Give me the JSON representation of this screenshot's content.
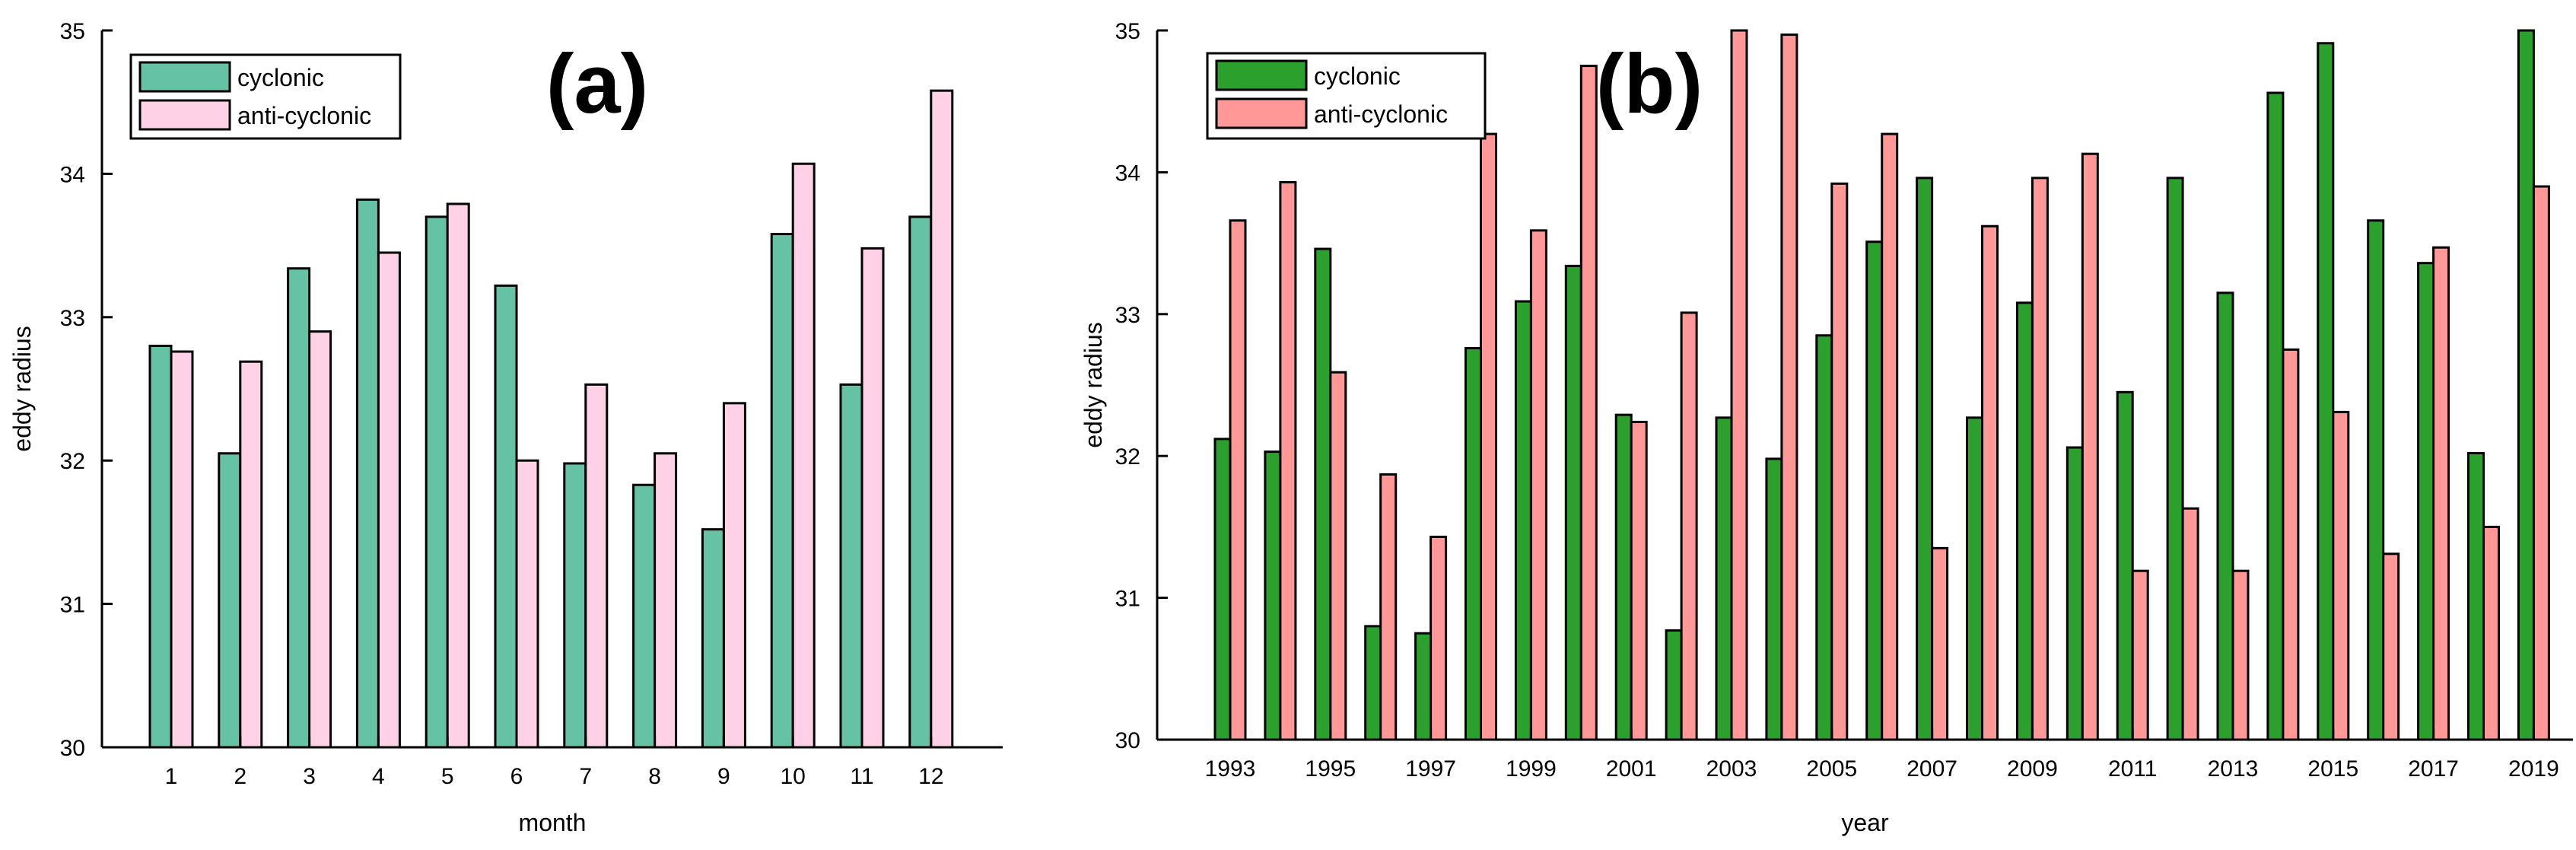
{
  "colors": {
    "a_cyclonic": "#66c2a5",
    "a_anticyclonic": "#ffd1e6",
    "b_cyclonic": "#2ca02c",
    "b_anticyclonic": "#ff9896",
    "edge": "#000000"
  },
  "chart_data": [
    {
      "type": "bar",
      "panel_label": "(a)",
      "xlabel": "month",
      "ylabel": "eddy radius",
      "ylim": [
        30,
        35
      ],
      "yticks": [
        30,
        31,
        32,
        33,
        34,
        35
      ],
      "grid": false,
      "legend": "top-left",
      "categories": [
        "1",
        "2",
        "3",
        "4",
        "5",
        "6",
        "7",
        "8",
        "9",
        "10",
        "11",
        "12"
      ],
      "series": [
        {
          "name": "cyclonic",
          "values": [
            32.8,
            32.05,
            33.34,
            33.82,
            33.7,
            33.22,
            31.98,
            31.83,
            31.52,
            33.58,
            32.53,
            33.7
          ]
        },
        {
          "name": "anti-cyclonic",
          "values": [
            32.76,
            32.69,
            32.9,
            33.45,
            33.79,
            32.0,
            32.53,
            32.05,
            32.4,
            34.07,
            33.48,
            34.58
          ]
        }
      ]
    },
    {
      "type": "bar",
      "panel_label": "(b)",
      "xlabel": "year",
      "ylabel": "eddy radius",
      "ylim": [
        30,
        35
      ],
      "yticks": [
        30,
        31,
        32,
        33,
        34,
        35
      ],
      "grid": false,
      "legend": "top-left",
      "categories": [
        "1993",
        "1994",
        "1995",
        "1996",
        "1997",
        "1998",
        "1999",
        "2000",
        "2001",
        "2002",
        "2003",
        "2004",
        "2005",
        "2006",
        "2007",
        "2008",
        "2009",
        "2010",
        "2011",
        "2012",
        "2013",
        "2014",
        "2015",
        "2016",
        "2017",
        "2018",
        "2019"
      ],
      "tick_labels_shown": [
        "1993",
        "1995",
        "1997",
        "1999",
        "2001",
        "2003",
        "2005",
        "2007",
        "2009",
        "2011",
        "2013",
        "2015",
        "2017",
        "2019"
      ],
      "series": [
        {
          "name": "cyclonic",
          "values": [
            32.12,
            32.03,
            33.46,
            30.8,
            30.75,
            32.76,
            33.09,
            33.34,
            32.29,
            30.77,
            32.27,
            31.98,
            32.85,
            33.51,
            33.96,
            32.27,
            33.08,
            32.06,
            32.45,
            33.96,
            33.15,
            34.56,
            34.91,
            33.66,
            33.36,
            32.02,
            35.0
          ]
        },
        {
          "name": "anti-cyclonic",
          "values": [
            33.66,
            33.93,
            32.59,
            31.87,
            31.43,
            34.27,
            33.59,
            34.75,
            32.24,
            33.01,
            35.0,
            34.97,
            33.92,
            34.27,
            31.35,
            33.62,
            33.96,
            34.13,
            31.19,
            31.63,
            31.19,
            32.75,
            32.31,
            31.31,
            33.47,
            31.5,
            33.9
          ]
        }
      ]
    }
  ]
}
